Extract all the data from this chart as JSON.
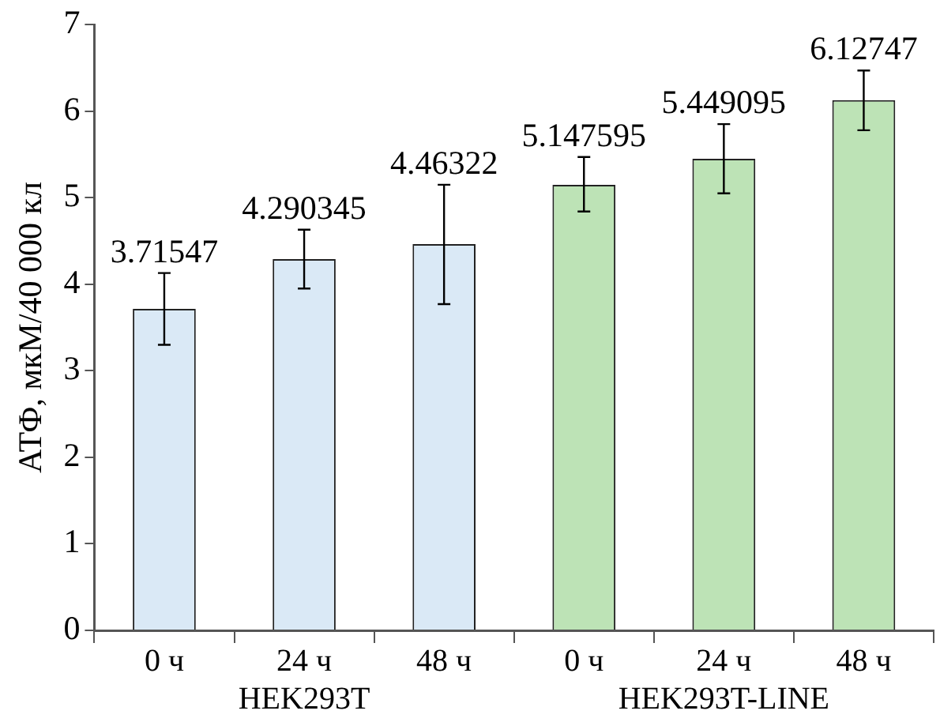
{
  "chart_data": {
    "type": "bar",
    "ylabel": "АТФ, мкМ/40 000 кл",
    "categories": [
      "0 ч",
      "24 ч",
      "48 ч",
      "0 ч",
      "24 ч",
      "48 ч"
    ],
    "values": [
      3.71547,
      4.290345,
      4.46322,
      5.147595,
      5.449095,
      6.12747
    ],
    "colors": [
      "#dae9f6",
      "#dae9f6",
      "#dae9f6",
      "#bde3b6",
      "#bde3b6",
      "#bde3b6"
    ],
    "errors": [
      [
        3.3,
        4.13
      ],
      [
        3.95,
        4.63
      ],
      [
        3.77,
        5.15
      ],
      [
        4.84,
        5.47
      ],
      [
        5.05,
        5.85
      ],
      [
        5.78,
        6.47
      ]
    ],
    "data_labels": true,
    "annotations": [
      "HEK293T",
      "HEK293T-LINE"
    ],
    "ylim": [
      0,
      7
    ],
    "yticks": [
      0,
      1,
      2,
      3,
      4,
      5,
      6,
      7
    ],
    "grid": false,
    "legend": false
  }
}
